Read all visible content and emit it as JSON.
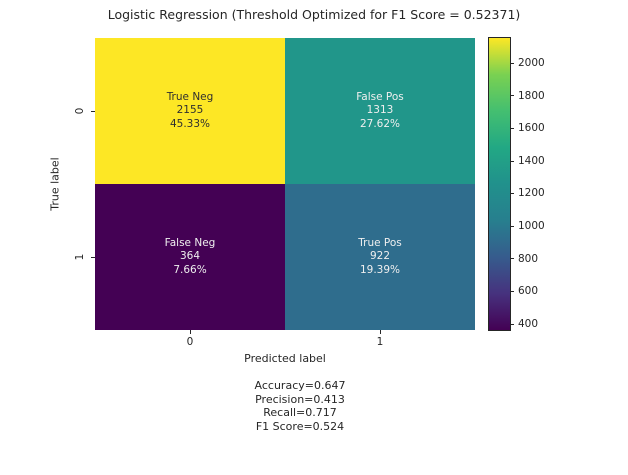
{
  "chart_data": {
    "type": "heatmap",
    "title": "Logistic Regression (Threshold Optimized for F1 Score = 0.52371)",
    "xlabel": "Predicted label",
    "ylabel": "True label",
    "x_ticks": [
      "0",
      "1"
    ],
    "y_ticks": [
      "0",
      "1"
    ],
    "colormap": "viridis",
    "cells": [
      {
        "row": 0,
        "col": 0,
        "label": "True Neg",
        "count": 2155,
        "percent": "45.33%",
        "color": "#fde725",
        "text_color": "#2f2f2f"
      },
      {
        "row": 0,
        "col": 1,
        "label": "False Pos",
        "count": 1313,
        "percent": "27.62%",
        "color": "#21968a",
        "text_color": "#efefef"
      },
      {
        "row": 1,
        "col": 0,
        "label": "False Neg",
        "count": 364,
        "percent": "7.66%",
        "color": "#440154",
        "text_color": "#efefef"
      },
      {
        "row": 1,
        "col": 1,
        "label": "True Pos",
        "count": 922,
        "percent": "19.39%",
        "color": "#2f6d8d",
        "text_color": "#efefef"
      }
    ],
    "colorbar": {
      "min": 364,
      "max": 2155,
      "ticks": [
        2000,
        1800,
        1600,
        1400,
        1200,
        1000,
        800,
        600,
        400
      ],
      "gradient_bottom_to_top": [
        "#440154",
        "#46327e",
        "#365c8d",
        "#277f8e",
        "#21918c",
        "#22a884",
        "#44bf70",
        "#7ad151",
        "#fde725"
      ]
    },
    "stats": [
      "Accuracy=0.647",
      "Precision=0.413",
      "Recall=0.717",
      "F1 Score=0.524"
    ]
  }
}
